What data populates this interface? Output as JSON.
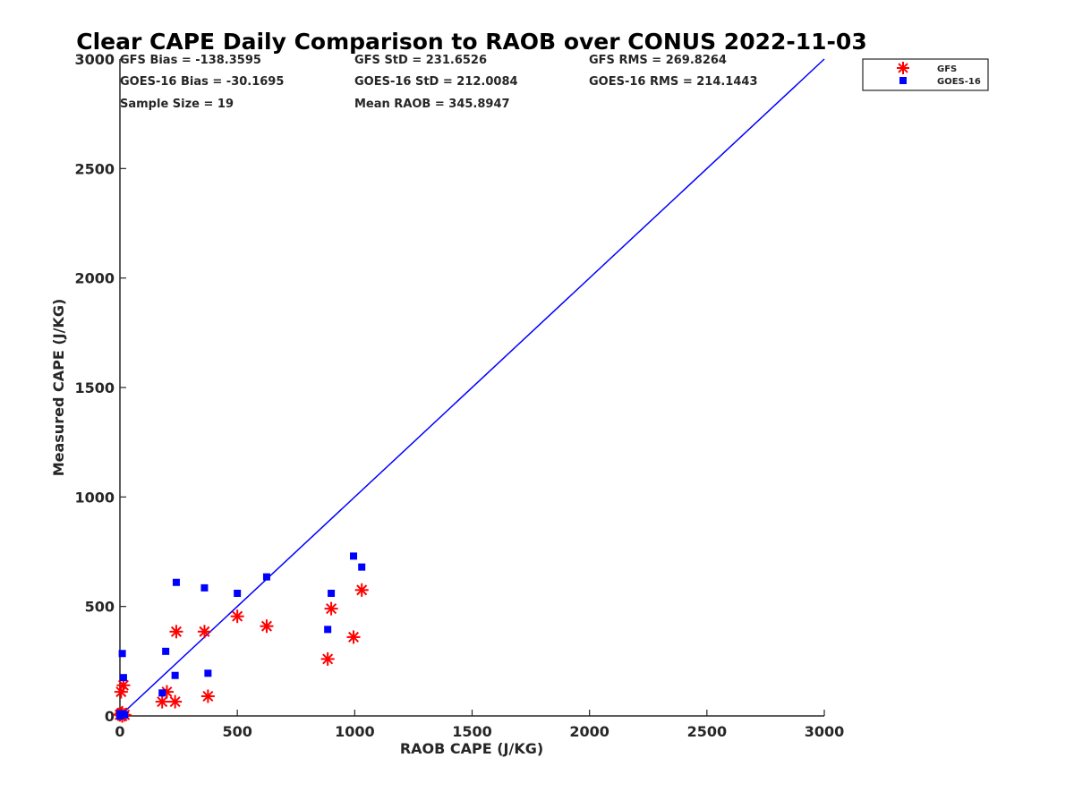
{
  "chart_data": {
    "type": "scatter",
    "title": "Clear CAPE Daily Comparison to RAOB over CONUS 2022-11-03",
    "xlabel": "RAOB CAPE (J/KG)",
    "ylabel": "Measured CAPE (J/KG)",
    "xlim": [
      0,
      3000
    ],
    "ylim": [
      0,
      3000
    ],
    "xticks": [
      "0",
      "500",
      "1000",
      "1500",
      "2000",
      "2500",
      "3000"
    ],
    "yticks": [
      "0",
      "500",
      "1000",
      "1500",
      "2000",
      "2500",
      "3000"
    ],
    "grid": false,
    "legend_position": "top-right",
    "stats": [
      [
        "GFS Bias = -138.3595",
        "GFS StD = 231.6526",
        "GFS RMS = 269.8264"
      ],
      [
        "GOES-16 Bias = -30.1695",
        "GOES-16 StD = 212.0084",
        "GOES-16 RMS = 214.1443"
      ],
      [
        "Sample Size = 19",
        "Mean RAOB = 345.8947",
        ""
      ]
    ],
    "reference_line": {
      "x": [
        0,
        3000
      ],
      "y": [
        0,
        3000
      ],
      "color": "#0000ff"
    },
    "series": [
      {
        "name": "GFS",
        "marker": "asterisk",
        "color": "#ff0000",
        "points": [
          [
            0,
            5
          ],
          [
            5,
            10
          ],
          [
            10,
            15
          ],
          [
            20,
            5
          ],
          [
            5,
            110
          ],
          [
            15,
            140
          ],
          [
            180,
            65
          ],
          [
            200,
            110
          ],
          [
            235,
            65
          ],
          [
            240,
            385
          ],
          [
            360,
            385
          ],
          [
            375,
            90
          ],
          [
            500,
            455
          ],
          [
            625,
            410
          ],
          [
            885,
            260
          ],
          [
            900,
            490
          ],
          [
            995,
            360
          ],
          [
            1030,
            575
          ],
          [
            10,
            0
          ]
        ]
      },
      {
        "name": "GOES-16",
        "marker": "square",
        "color": "#0000ff",
        "points": [
          [
            0,
            0
          ],
          [
            5,
            5
          ],
          [
            10,
            285
          ],
          [
            15,
            175
          ],
          [
            20,
            5
          ],
          [
            180,
            105
          ],
          [
            195,
            295
          ],
          [
            235,
            185
          ],
          [
            240,
            610
          ],
          [
            360,
            585
          ],
          [
            375,
            195
          ],
          [
            500,
            560
          ],
          [
            625,
            635
          ],
          [
            885,
            395
          ],
          [
            900,
            560
          ],
          [
            995,
            730
          ],
          [
            1030,
            680
          ],
          [
            10,
            10
          ],
          [
            0,
            10
          ]
        ]
      }
    ]
  }
}
